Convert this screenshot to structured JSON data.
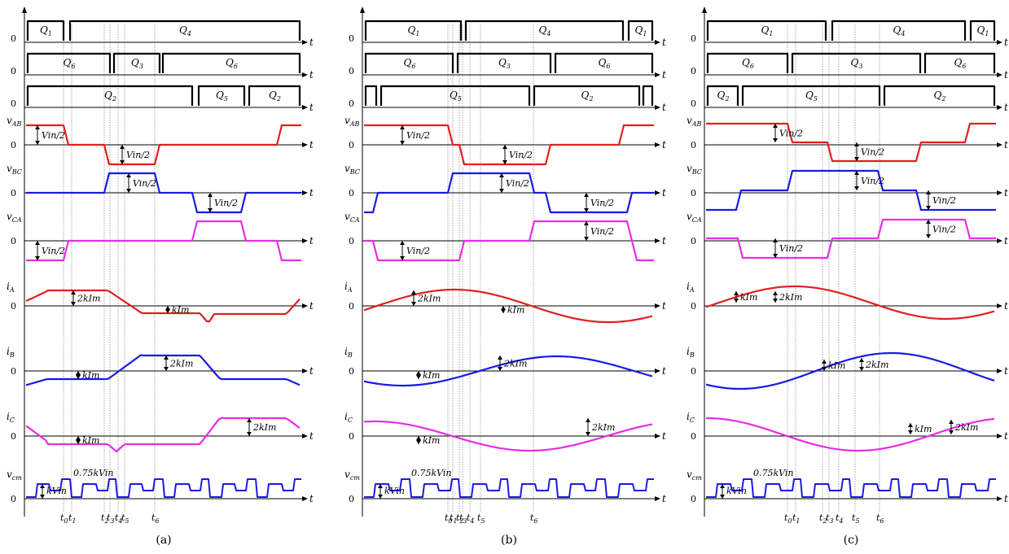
{
  "colors": {
    "vAB": "#e02020",
    "vBC": "#1a1ae6",
    "vCA": "#e62ee6",
    "iA": "#e02020",
    "iB": "#1a1ae6",
    "iC": "#e62ee6",
    "vcm": "#1a1ae6",
    "gate": "#000000",
    "guide": "#b8b8b8"
  },
  "panels": [
    {
      "id": "a",
      "caption": "(a)",
      "gates": [
        [
          "Q1",
          "Q4"
        ],
        [
          "Q6",
          "Q3",
          "Q6"
        ],
        [
          "Q2",
          "Q5",
          "Q2"
        ]
      ],
      "voltage_labels": [
        "vAB",
        "vBC",
        "vCA"
      ],
      "voltage_ann": [
        "Vin/2",
        "Vin/2",
        "Vin/2",
        "Vin/2",
        "Vin/2"
      ],
      "current_labels": [
        "iA",
        "iB",
        "iC"
      ],
      "current_ann": [
        "2kIm",
        "kIm",
        "kIm",
        "2kIm",
        "kIm",
        "2kIm"
      ],
      "vcm_label": "vcm",
      "vcm_ann": [
        "0.75kVin",
        "kVin"
      ],
      "time_marks": [
        "t0",
        "t1",
        "t2",
        "t3",
        "t4",
        "t5",
        "t6"
      ],
      "zero": "0",
      "axis": "t"
    },
    {
      "id": "b",
      "caption": "(b)",
      "gates": [
        [
          "Q1",
          "Q4"
        ],
        [
          "Q6",
          "Q3",
          "Q6"
        ],
        [
          "Q2",
          "Q5"
        ]
      ],
      "voltage_labels": [
        "vAB",
        "vBC",
        "vCA"
      ],
      "voltage_ann": [
        "Vin/2",
        "Vin/2",
        "Vin/2",
        "Vin/2",
        "Vin/2",
        "Vin/2"
      ],
      "current_labels": [
        "iA",
        "iB",
        "iC"
      ],
      "current_ann": [
        "2kIm",
        "kIm",
        "2kIm",
        "kIm",
        "kIm",
        "2kIm"
      ],
      "vcm_label": "vcm",
      "vcm_ann": [
        "0.75kVin",
        "kVin"
      ],
      "time_marks": [
        "t0",
        "t1",
        "t2",
        "t3",
        "t4",
        "t5",
        "t6"
      ],
      "zero": "0",
      "axis": "t"
    },
    {
      "id": "c",
      "caption": "(c)",
      "gates": [
        [
          "Q1",
          "Q4"
        ],
        [
          "Q6",
          "Q3",
          "Q6"
        ],
        [
          "Q2",
          "Q5",
          "Q2"
        ]
      ],
      "voltage_labels": [
        "vAB",
        "vBC",
        "vCA"
      ],
      "voltage_ann": [
        "Vin/2",
        "Vin/2",
        "Vin/2",
        "Vin/2",
        "Vin/2",
        "Vin/2"
      ],
      "current_labels": [
        "iA",
        "iB",
        "iC"
      ],
      "current_ann": [
        "kIm",
        "2kIm",
        "kIm",
        "2kIm",
        "kIm",
        "2kIm"
      ],
      "vcm_label": "vcm",
      "vcm_ann": [
        "0.75kVin",
        "kVin"
      ],
      "time_marks": [
        "t0",
        "t1",
        "t2",
        "t3",
        "t4",
        "t5",
        "t6"
      ],
      "zero": "0",
      "axis": "t"
    }
  ]
}
